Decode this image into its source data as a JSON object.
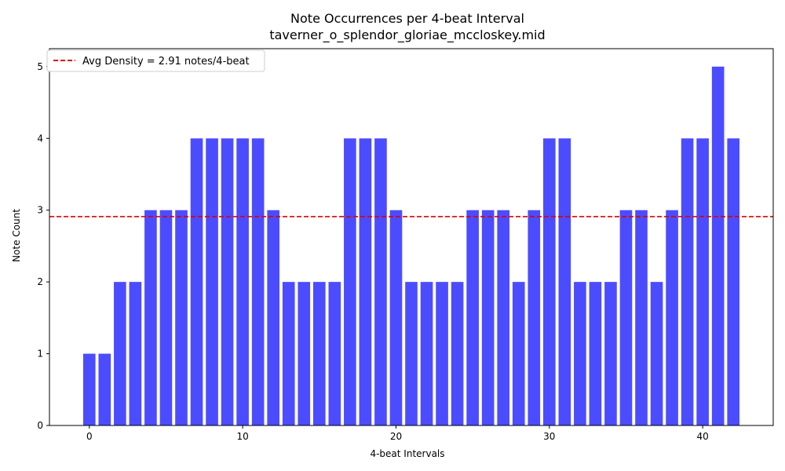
{
  "chart_data": {
    "type": "bar",
    "title": "Note Occurrences per 4-beat Interval",
    "subtitle": "taverner_o_splendor_gloriae_mccloskey.mid",
    "xlabel": "4-beat Intervals",
    "ylabel": "Note Count",
    "x": [
      0,
      1,
      2,
      3,
      4,
      5,
      6,
      7,
      8,
      9,
      10,
      11,
      12,
      13,
      14,
      15,
      16,
      17,
      18,
      19,
      20,
      21,
      22,
      23,
      24,
      25,
      26,
      27,
      28,
      29,
      30,
      31,
      32,
      33,
      34,
      35,
      36,
      37,
      38,
      39,
      40,
      41,
      42
    ],
    "values": [
      1,
      1,
      2,
      2,
      3,
      3,
      3,
      4,
      4,
      4,
      4,
      4,
      3,
      2,
      2,
      2,
      2,
      4,
      4,
      4,
      3,
      2,
      2,
      2,
      2,
      3,
      3,
      3,
      2,
      3,
      4,
      4,
      2,
      2,
      2,
      3,
      3,
      2,
      3,
      4,
      4,
      5,
      4
    ],
    "xlim": [
      -2.6,
      44.6
    ],
    "ylim": [
      0,
      5.25
    ],
    "xticks": [
      0,
      10,
      20,
      30,
      40
    ],
    "yticks": [
      0,
      1,
      2,
      3,
      4,
      5
    ],
    "bar_color": "#4c4cff",
    "average": {
      "value": 2.91,
      "label": "Avg Density = 2.91 notes/4-beat",
      "color": "#e00000"
    },
    "grid": false,
    "legend_position": "top-left"
  }
}
